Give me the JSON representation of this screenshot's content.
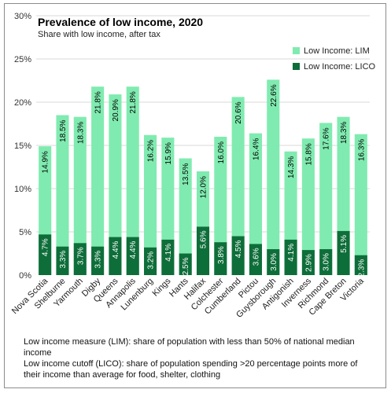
{
  "chart_data": {
    "type": "bar",
    "title": "Prevalence of low income, 2020",
    "subtitle": "Share with low income, after tax",
    "categories": [
      "Nova Scotia",
      "Shelburne",
      "Yarmouth",
      "Digby",
      "Queens",
      "Annapolis",
      "Lunenburg",
      "Kings",
      "Hants",
      "Halifax",
      "Colchester",
      "Cumberland",
      "Pictou",
      "Guysborough",
      "Antigonish",
      "Inverness",
      "Richmond",
      "Cape Breton",
      "Victoria"
    ],
    "series": [
      {
        "name": "Low Income: LIM",
        "values": [
          14.9,
          18.5,
          18.3,
          21.8,
          20.9,
          21.8,
          16.2,
          15.9,
          13.5,
          12.0,
          16.0,
          20.6,
          16.4,
          22.6,
          14.3,
          15.8,
          17.6,
          18.3,
          16.3
        ]
      },
      {
        "name": "Low Income: LICO",
        "values": [
          4.7,
          3.3,
          3.7,
          3.3,
          4.4,
          4.4,
          3.2,
          4.1,
          2.5,
          5.6,
          3.8,
          4.5,
          3.6,
          3.0,
          4.1,
          2.9,
          3.0,
          5.1,
          2.3
        ]
      }
    ],
    "value_labels": {
      "lim": [
        "14.9%",
        "18.5%",
        "18.3%",
        "21.8%",
        "20.9%",
        "21.8%",
        "16.2%",
        "15.9%",
        "13.5%",
        "12.0%",
        "16.0%",
        "20.6%",
        "16.4%",
        "22.6%",
        "14.3%",
        "15.8%",
        "17.6%",
        "18.3%",
        "16.3%"
      ],
      "lico": [
        "4.7%",
        "3.3%",
        "3.7%",
        "3.3%",
        "4.4%",
        "4.4%",
        "3.2%",
        "4.1%",
        "2.5%",
        "5.6%",
        "3.8%",
        "4.5%",
        "3.6%",
        "3.0%",
        "4.1%",
        "2.9%",
        "3.0%",
        "5.1%",
        "2.3%"
      ]
    },
    "ylim": [
      0,
      30
    ],
    "yticks": [
      "0%",
      "5%",
      "10%",
      "15%",
      "20%",
      "25%",
      "30%"
    ],
    "grid": true,
    "legend_position": "top-right",
    "colors": {
      "lim": "#80ebb0",
      "lico": "#0e6e3a"
    }
  },
  "notes": {
    "lim": "Low income measure (LIM): share of population with less than 50% of national median income",
    "lico": "Low income cutoff (LICO): share of population spending >20 percentage points more of their income than average for food, shelter, clothing"
  }
}
